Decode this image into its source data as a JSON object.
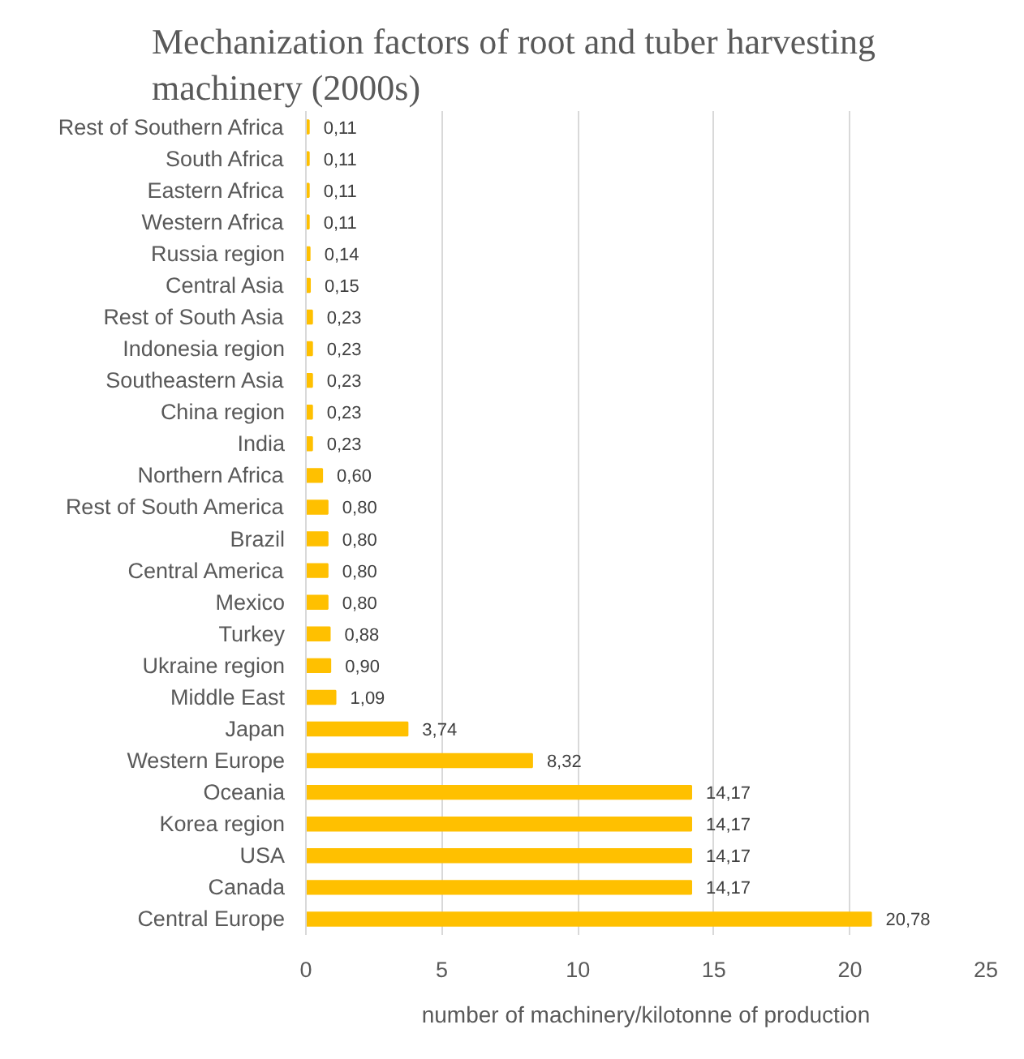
{
  "chart_data": {
    "type": "bar",
    "orientation": "horizontal",
    "title": "Mechanization factors of root and tuber harvesting machinery (2000s)",
    "xlabel": "number of machinery/kilotonne of production",
    "categories": [
      "Rest of Southern Africa",
      "South Africa",
      "Eastern Africa",
      "Western Africa",
      "Russia region",
      "Central Asia",
      "Rest of South Asia",
      "Indonesia region",
      "Southeastern Asia",
      "China region",
      "India",
      "Northern Africa",
      "Rest of South America",
      "Brazil",
      "Central America",
      "Mexico",
      "Turkey",
      "Ukraine region",
      "Middle East",
      "Japan",
      "Western Europe",
      "Oceania",
      "Korea region",
      "USA",
      "Canada",
      "Central Europe"
    ],
    "values": [
      0.11,
      0.11,
      0.11,
      0.11,
      0.14,
      0.15,
      0.23,
      0.23,
      0.23,
      0.23,
      0.23,
      0.6,
      0.8,
      0.8,
      0.8,
      0.8,
      0.88,
      0.9,
      1.09,
      3.74,
      8.32,
      14.17,
      14.17,
      14.17,
      14.17,
      20.78
    ],
    "value_labels": [
      "0,11",
      "0,11",
      "0,11",
      "0,11",
      "0,14",
      "0,15",
      "0,23",
      "0,23",
      "0,23",
      "0,23",
      "0,23",
      "0,60",
      "0,80",
      "0,80",
      "0,80",
      "0,80",
      "0,88",
      "0,90",
      "1,09",
      "3,74",
      "8,32",
      "14,17",
      "14,17",
      "14,17",
      "14,17",
      "20,78"
    ],
    "color": "#ffc000",
    "xlim": [
      0,
      25
    ],
    "xticks": [
      0,
      5,
      10,
      15,
      20,
      25
    ],
    "grid": "x"
  }
}
